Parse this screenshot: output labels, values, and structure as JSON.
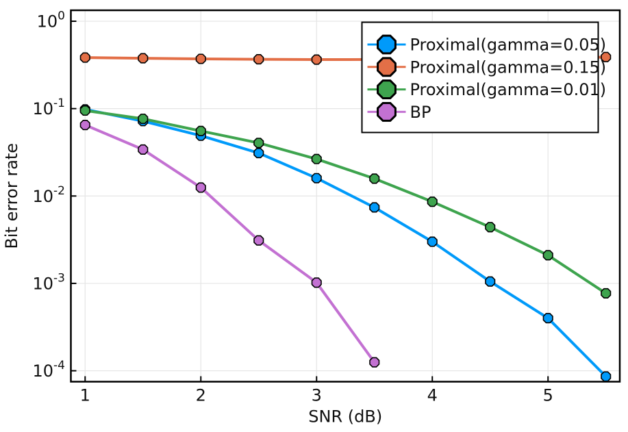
{
  "chart_data": {
    "type": "line",
    "title": "",
    "xlabel": "SNR (dB)",
    "ylabel": "Bit error rate",
    "yscale": "log10",
    "grid": true,
    "legend_position": "top-right",
    "xlim": [
      0.877,
      5.62
    ],
    "ylim": [
      7.5e-05,
      1.335
    ],
    "ylim_exponents": [
      -4.125,
      0.1255
    ],
    "xticks": [
      1,
      2,
      3,
      4,
      5
    ],
    "ytick_exponents": [
      0,
      -1,
      -2,
      -3,
      -4
    ],
    "ytick_base": "10",
    "x": [
      1.0,
      1.5,
      2.0,
      2.5,
      3.0,
      3.5,
      4.0,
      4.5,
      5.0,
      5.5
    ],
    "series": [
      {
        "name": "Proximal(gamma=0.05)",
        "color": "#009AFA",
        "marker": "octagon",
        "values": [
          0.098,
          0.072,
          0.049,
          0.031,
          0.016,
          0.0074,
          0.003,
          0.00105,
          0.0004,
          8.6e-05
        ]
      },
      {
        "name": "Proximal(gamma=0.15)",
        "color": "#E36F47",
        "marker": "octagon",
        "values": [
          0.384,
          0.377,
          0.371,
          0.367,
          0.364,
          0.365,
          0.366,
          0.368,
          0.374,
          0.389
        ]
      },
      {
        "name": "Proximal(gamma=0.01)",
        "color": "#3EA44E",
        "marker": "octagon",
        "values": [
          0.095,
          0.0765,
          0.0555,
          0.0405,
          0.0265,
          0.0158,
          0.0086,
          0.0044,
          0.0021,
          0.00077
        ]
      },
      {
        "name": "BP",
        "color": "#C371D2",
        "marker": "octagon",
        "values": [
          0.065,
          0.034,
          0.0125,
          0.0031,
          0.00102,
          0.000125,
          null,
          null,
          null,
          null
        ]
      }
    ],
    "style": {
      "background": "#FFFFFF",
      "frame_color": "#000000",
      "grid_color": "#E5E5E5",
      "text_color": "#101010",
      "legend_border_color": "#000000",
      "legend_fill": "#FFFFFF",
      "marker_stroke": "#000000"
    }
  }
}
